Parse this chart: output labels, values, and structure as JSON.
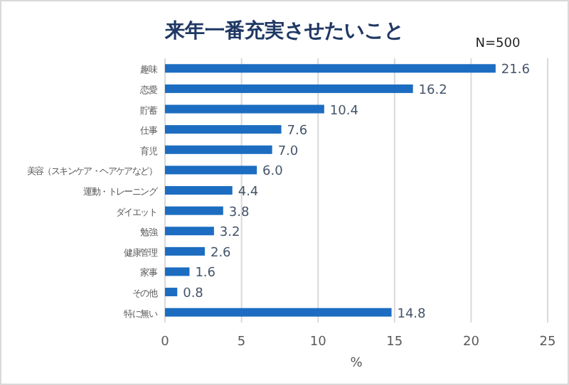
{
  "chart_data": {
    "type": "bar",
    "orientation": "horizontal",
    "title": "来年一番充実させたいこと",
    "annotations": [
      "N=500"
    ],
    "categories": [
      "趣味",
      "恋愛",
      "貯蓄",
      "仕事",
      "育児",
      "美容（スキンケア・ヘアケアなど）",
      "運動・トレーニング",
      "ダイエット",
      "勉強",
      "健康管理",
      "家事",
      "その他",
      "特に無い"
    ],
    "values": [
      21.6,
      16.2,
      10.4,
      7.6,
      7.0,
      6.0,
      4.4,
      3.8,
      3.2,
      2.6,
      1.6,
      0.8,
      14.8
    ],
    "value_labels": [
      "21.6",
      "16.2",
      "10.4",
      "7.6",
      "7.0",
      "6.0",
      "4.4",
      "3.8",
      "3.2",
      "2.6",
      "1.6",
      "0.8",
      "14.8"
    ],
    "color": "#1c6dc1",
    "xlabel": "%",
    "xlim": [
      0,
      25
    ],
    "xticks": [
      0,
      5,
      10,
      15,
      20,
      25
    ],
    "grid": "x"
  }
}
